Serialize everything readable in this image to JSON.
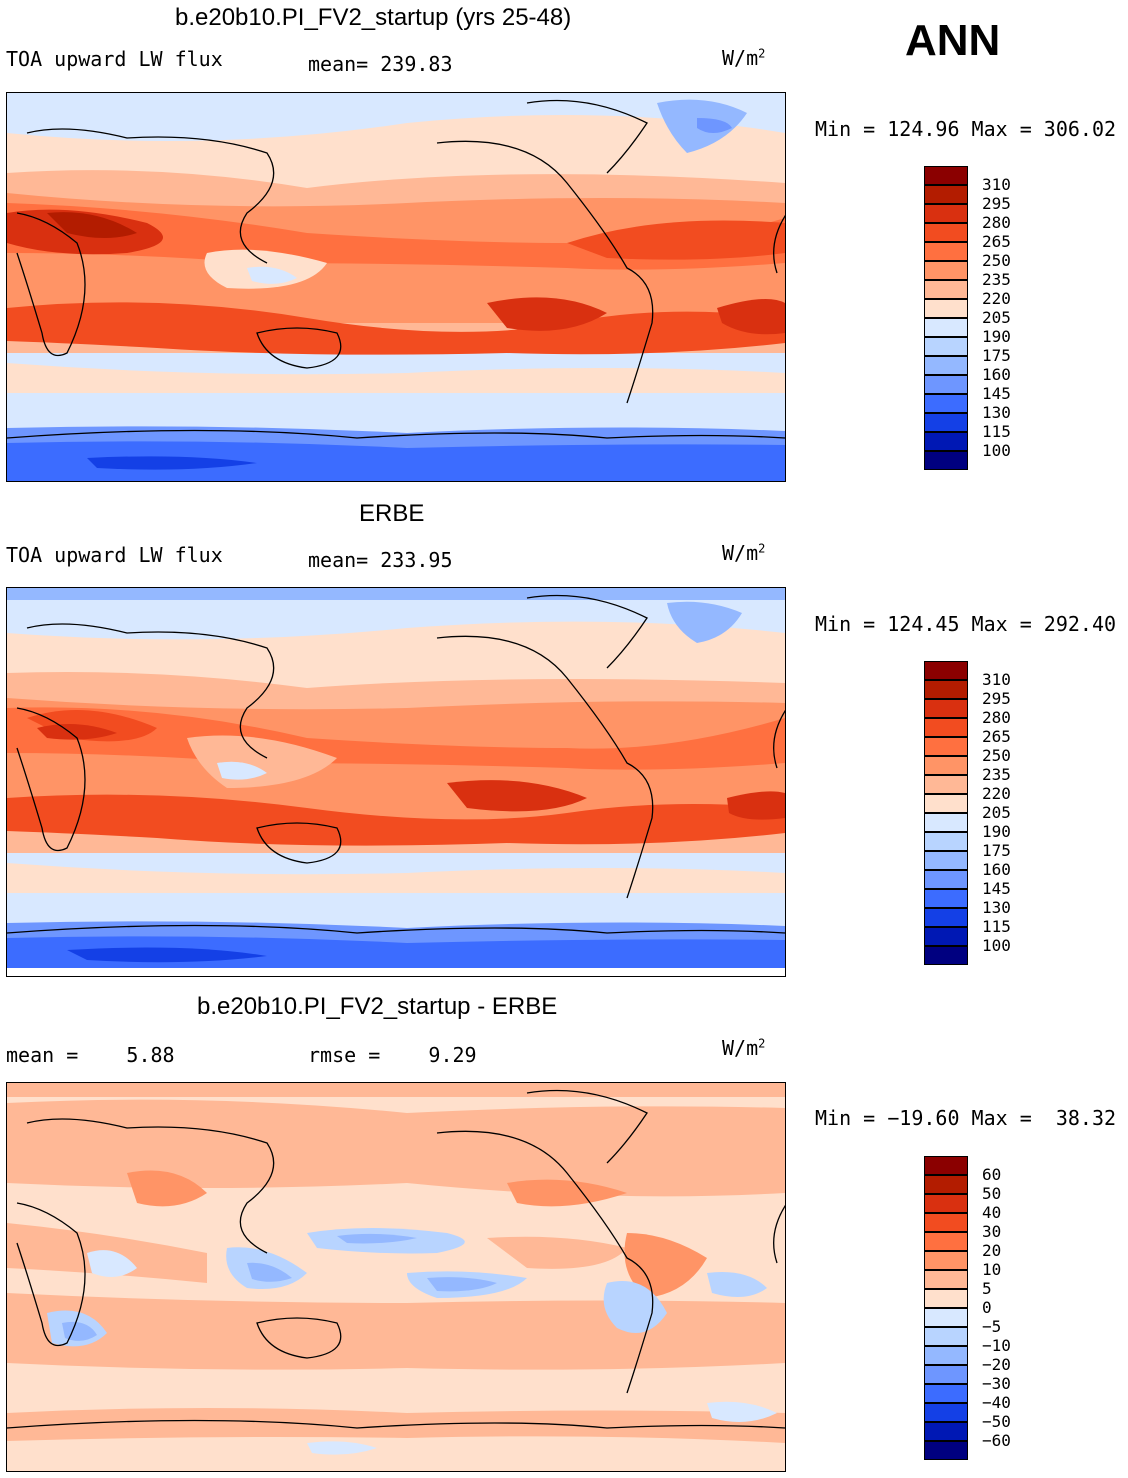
{
  "season": "ANN",
  "panels": [
    {
      "title": "b.e20b10.PI_FV2_startup (yrs 25-48)",
      "left_label": "TOA upward LW flux",
      "center_label": "mean= 239.83",
      "units": "W/m",
      "units_exp": "2",
      "minmax": "Min = 124.96 Max = 306.02",
      "colorbar": [
        "310",
        "295",
        "280",
        "265",
        "250",
        "235",
        "220",
        "205",
        "190",
        "175",
        "160",
        "145",
        "130",
        "115",
        "100"
      ],
      "colors": [
        "#8b0000",
        "#b31c00",
        "#d93010",
        "#f24c20",
        "#ff7040",
        "#ff9466",
        "#ffb896",
        "#ffe0cc",
        "#d8e8ff",
        "#b8d4ff",
        "#94b8ff",
        "#6e96ff",
        "#3c6cff",
        "#1440e6",
        "#0018b4",
        "#000080"
      ]
    },
    {
      "title": "ERBE",
      "left_label": "TOA upward LW flux",
      "center_label": "mean= 233.95",
      "units": "W/m",
      "units_exp": "2",
      "minmax": "Min = 124.45 Max = 292.40",
      "colorbar": [
        "310",
        "295",
        "280",
        "265",
        "250",
        "235",
        "220",
        "205",
        "190",
        "175",
        "160",
        "145",
        "130",
        "115",
        "100"
      ],
      "colors": [
        "#8b0000",
        "#b31c00",
        "#d93010",
        "#f24c20",
        "#ff7040",
        "#ff9466",
        "#ffb896",
        "#ffe0cc",
        "#d8e8ff",
        "#b8d4ff",
        "#94b8ff",
        "#6e96ff",
        "#3c6cff",
        "#1440e6",
        "#0018b4",
        "#000080"
      ]
    },
    {
      "title": "b.e20b10.PI_FV2_startup - ERBE",
      "left_label": "mean =    5.88",
      "center_label": "rmse =    9.29",
      "units": "W/m",
      "units_exp": "2",
      "minmax": "Min = −19.60 Max =  38.32",
      "colorbar": [
        "60",
        "50",
        "40",
        "30",
        "20",
        "10",
        "5",
        "0",
        "−5",
        "−10",
        "−20",
        "−30",
        "−40",
        "−50",
        "−60"
      ],
      "colors": [
        "#8b0000",
        "#b31c00",
        "#d93010",
        "#f24c20",
        "#ff7040",
        "#ff9466",
        "#ffb896",
        "#ffe0cc",
        "#d8e8ff",
        "#b8d4ff",
        "#94b8ff",
        "#6e96ff",
        "#3c6cff",
        "#1440e6",
        "#0018b4",
        "#000080"
      ]
    }
  ],
  "chart_data": [
    {
      "type": "heatmap",
      "title": "b.e20b10.PI_FV2_startup (yrs 25-48)",
      "variable": "TOA upward LW flux",
      "units": "W/m2",
      "mean": 239.83,
      "min": 124.96,
      "max": 306.02,
      "levels": [
        100,
        115,
        130,
        145,
        160,
        175,
        190,
        205,
        220,
        235,
        250,
        265,
        280,
        295,
        310
      ]
    },
    {
      "type": "heatmap",
      "title": "ERBE",
      "variable": "TOA upward LW flux",
      "units": "W/m2",
      "mean": 233.95,
      "min": 124.45,
      "max": 292.4,
      "levels": [
        100,
        115,
        130,
        145,
        160,
        175,
        190,
        205,
        220,
        235,
        250,
        265,
        280,
        295,
        310
      ]
    },
    {
      "type": "heatmap",
      "title": "b.e20b10.PI_FV2_startup - ERBE",
      "units": "W/m2",
      "mean": 5.88,
      "rmse": 9.29,
      "min": -19.6,
      "max": 38.32,
      "levels": [
        -60,
        -50,
        -40,
        -30,
        -20,
        -10,
        -5,
        0,
        5,
        10,
        20,
        30,
        40,
        50,
        60
      ]
    }
  ]
}
